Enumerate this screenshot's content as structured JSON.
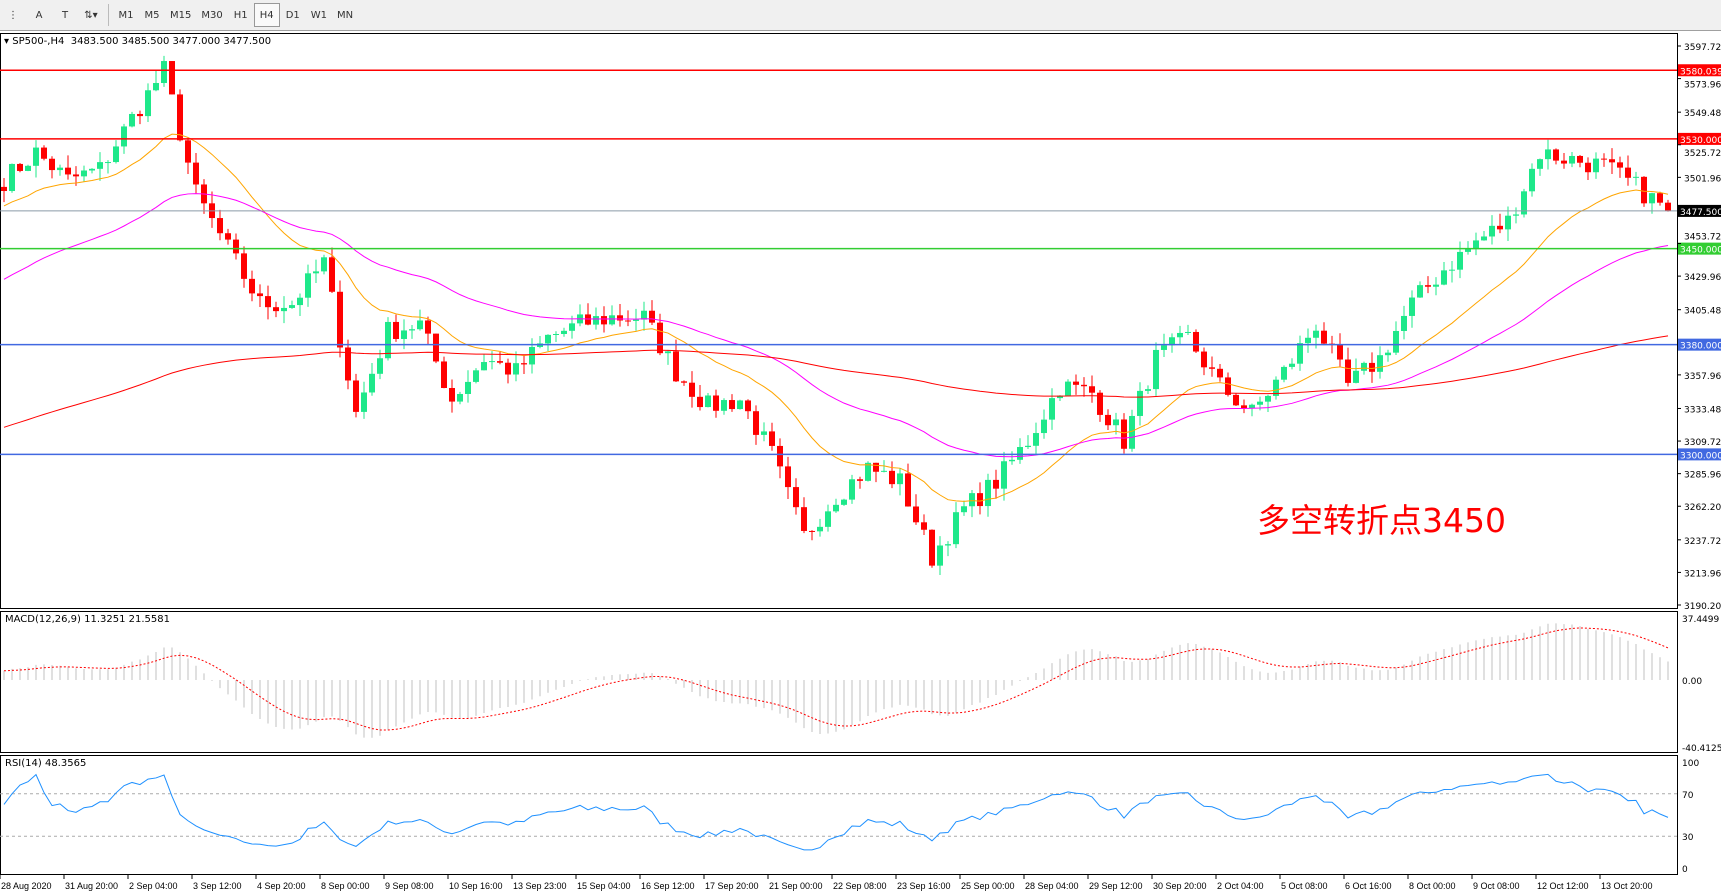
{
  "toolbar": {
    "tools": [
      {
        "icon": "period-separator-icon",
        "glyph": "⋮"
      },
      {
        "icon": "text-icon",
        "glyph": "A"
      },
      {
        "icon": "text-label-icon",
        "glyph": "T"
      },
      {
        "icon": "arrows-icon",
        "glyph": "⇅▾"
      }
    ],
    "timeframes": [
      "M1",
      "M5",
      "M15",
      "M30",
      "H1",
      "H4",
      "D1",
      "W1",
      "MN"
    ],
    "selected_timeframe": "H4"
  },
  "main": {
    "symbol_header": "SP500-,H4",
    "ohlc": "3483.500 3485.500 3477.000 3477.500",
    "annotation": "多空转折点3450",
    "price_ticks": [
      "3597.720",
      "3573.960",
      "3549.480",
      "3525.720",
      "3501.960",
      "3453.720",
      "3429.960",
      "3405.480",
      "3357.960",
      "3333.480",
      "3309.720",
      "3285.960",
      "3262.200",
      "3237.720",
      "3213.960",
      "3190.200"
    ],
    "levels": [
      {
        "price": 3580.039,
        "label": "3580.039",
        "color": "#ff0000"
      },
      {
        "price": 3530.0,
        "label": "3530.000",
        "color": "#ff0000"
      },
      {
        "price": 3477.5,
        "label": "3477.500",
        "color": "#000000",
        "line": "#8a9aa8"
      },
      {
        "price": 3450.0,
        "label": "3450.000",
        "color": "#32cd32"
      },
      {
        "price": 3380.0,
        "label": "3380.000",
        "color": "#4169e1"
      },
      {
        "price": 3300.0,
        "label": "3300.000",
        "color": "#4169e1"
      }
    ]
  },
  "macd": {
    "label": "MACD(12,26,9) 11.3251 21.5581",
    "ticks": [
      "37.4499",
      "0.00",
      "-40.4125"
    ]
  },
  "rsi": {
    "label": "RSI(14) 48.3565",
    "ticks": [
      "100",
      "70",
      "30",
      "0"
    ]
  },
  "time_labels": [
    "28 Aug 2020",
    "31 Aug 20:00",
    "2 Sep 04:00",
    "3 Sep 12:00",
    "4 Sep 20:00",
    "8 Sep 00:00",
    "9 Sep 08:00",
    "10 Sep 16:00",
    "13 Sep 23:00",
    "15 Sep 04:00",
    "16 Sep 12:00",
    "17 Sep 20:00",
    "21 Sep 00:00",
    "22 Sep 08:00",
    "23 Sep 16:00",
    "25 Sep 00:00",
    "28 Sep 04:00",
    "29 Sep 12:00",
    "30 Sep 20:00",
    "2 Oct 04:00",
    "5 Oct 08:00",
    "6 Oct 16:00",
    "8 Oct 00:00",
    "9 Oct 08:00",
    "12 Oct 12:00",
    "13 Oct 20:00"
  ],
  "chart_data": {
    "type": "candlestick",
    "timeframe": "H4",
    "ylim": [
      3190.2,
      3597.72
    ],
    "approx_close_every_4_bars": [
      3500,
      3520,
      3500,
      3508,
      3545,
      3580,
      3490,
      3450,
      3410,
      3410,
      3440,
      3330,
      3390,
      3395,
      3340,
      3370,
      3360,
      3385,
      3395,
      3400,
      3400,
      3360,
      3335,
      3340,
      3300,
      3240,
      3270,
      3290,
      3280,
      3225,
      3260,
      3280,
      3310,
      3350,
      3345,
      3310,
      3370,
      3385,
      3350,
      3330,
      3360,
      3395,
      3350,
      3370,
      3410,
      3435,
      3455,
      3470,
      3520,
      3515,
      3510,
      3495,
      3477.5
    ],
    "last_bar": {
      "open": 3483.5,
      "high": 3485.5,
      "low": 3477.0,
      "close": 3477.5
    },
    "colors": {
      "bull": "#1ee88a",
      "bear": "#ff0000",
      "ma_fast": "#ffa500",
      "ma_mid": "#ff00ff",
      "ma_slow": "#ff0000",
      "macd_hist": "#c0c0c0",
      "macd_signal": "#ff0000",
      "rsi": "#1e90ff"
    },
    "rsi_levels": [
      70,
      30
    ]
  }
}
